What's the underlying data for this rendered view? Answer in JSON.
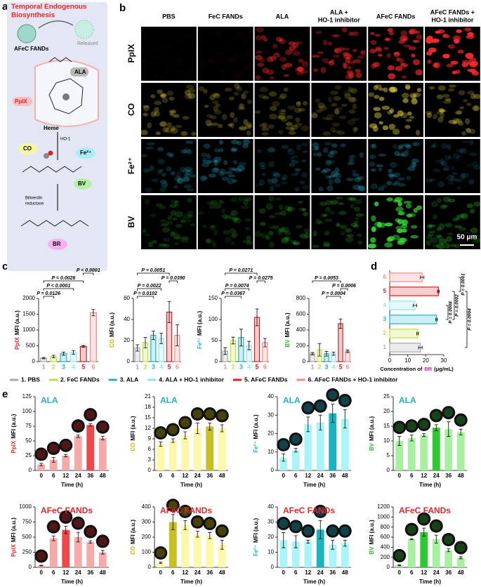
{
  "panel_labels": [
    "a",
    "b",
    "c",
    "d",
    "e"
  ],
  "panel_a": {
    "title": [
      "Temporal Endogenous",
      "Biosynthesis"
    ],
    "nanoparticle": "AFeC FANDs",
    "released": "Released",
    "ala": "ALA",
    "ppix": "PpIX",
    "heme": "Heme",
    "enzyme": "HO-1",
    "co": "CO",
    "fe": "Fe²⁺",
    "bv": "BV",
    "reductase": [
      "Biliverdin",
      "reductase"
    ],
    "br": "BR"
  },
  "panel_b": {
    "columns": [
      [
        "PBS"
      ],
      [
        "FeC FANDs"
      ],
      [
        "ALA"
      ],
      [
        "ALA +",
        "HO-1 inhibitor"
      ],
      [
        "AFeC FANDs"
      ],
      [
        "AFeC FANDs +",
        "HO-1 inhibitor"
      ]
    ],
    "rows": [
      "PpIX",
      "CO",
      "Fe²⁺",
      "BV"
    ],
    "scale_bar": "50 μm"
  },
  "legend": {
    "names": [
      "1. PBS",
      "2. FeC FANDs",
      "3. ALA",
      "4. ALA + HO-1 inhibitor",
      "5. AFeC FANDs",
      "6. AFeC FANDs + HO-1 inhibitor"
    ],
    "colors": [
      "#a8a8a8",
      "#c4dc3c",
      "#1fb2c8",
      "#8fe4f0",
      "#d81e1e",
      "#f58a8a"
    ]
  },
  "chart_data": [
    {
      "type": "bar",
      "bar_style": "outline",
      "y_label_key": "PpIX",
      "y_label_key_color": "#e8262a",
      "y_label": "MFI (a.u.)",
      "categories": [
        "1",
        "2",
        "3",
        "4",
        "5",
        "6"
      ],
      "category_colors": [
        "#a8a8a8",
        "#c4dc3c",
        "#1fb2c8",
        "#8fe4f0",
        "#d81e1e",
        "#f58a8a"
      ],
      "values": [
        110,
        160,
        250,
        290,
        480,
        1550
      ],
      "errors": [
        20,
        40,
        50,
        60,
        30,
        100
      ],
      "colors": [
        "#a8a8a8",
        "#c4dc3c",
        "#1fb2c8",
        "#8fe4f0",
        "#d81e1e",
        "#f58a8a"
      ],
      "ylim": [
        0,
        2000
      ],
      "yticks": [
        0,
        500,
        1000,
        1500,
        2000
      ],
      "brackets": [
        {
          "span": [
            0,
            1
          ],
          "label": "P = 0.0126"
        },
        {
          "span": [
            0,
            3
          ],
          "label": "P < 0.0001"
        },
        {
          "span": [
            0,
            4
          ],
          "label": "P = 0.0026"
        },
        {
          "span": [
            4,
            5
          ],
          "label": "P < 0.0001"
        }
      ]
    },
    {
      "type": "bar",
      "bar_style": "outline",
      "y_label_key": "CO",
      "y_label_key_color": "#c8b400",
      "y_label": "MFI (a.u.)",
      "categories": [
        "1",
        "2",
        "3",
        "4",
        "5",
        "6"
      ],
      "category_colors": [
        "#a8a8a8",
        "#c4dc3c",
        "#1fb2c8",
        "#8fe4f0",
        "#d81e1e",
        "#f58a8a"
      ],
      "values": [
        13,
        18,
        25,
        22,
        47,
        25
      ],
      "errors": [
        3,
        5,
        4,
        5,
        10,
        10
      ],
      "colors": [
        "#a8a8a8",
        "#c4dc3c",
        "#1fb2c8",
        "#8fe4f0",
        "#d81e1e",
        "#f58a8a"
      ],
      "ylim": [
        0,
        60
      ],
      "yticks": [
        0,
        20,
        40,
        60
      ],
      "brackets": [
        {
          "span": [
            0,
            2
          ],
          "label": "P = 0.0102"
        },
        {
          "span": [
            0,
            3
          ],
          "label": "P = 0.0022"
        },
        {
          "span": [
            4,
            5
          ],
          "label": "P = 0.0390"
        },
        {
          "span": [
            0,
            4
          ],
          "label": "P = 0.0051"
        }
      ]
    },
    {
      "type": "bar",
      "bar_style": "outline",
      "y_label_key": "Fe²⁺",
      "y_label_key_color": "#1fb2c8",
      "y_label": "MFI (a.u.)",
      "categories": [
        "1",
        "2",
        "3",
        "4",
        "5",
        "6"
      ],
      "category_colors": [
        "#a8a8a8",
        "#c4dc3c",
        "#1fb2c8",
        "#8fe4f0",
        "#d81e1e",
        "#f58a8a"
      ],
      "values": [
        25,
        50,
        57,
        38,
        105,
        45
      ],
      "errors": [
        8,
        8,
        20,
        10,
        20,
        10
      ],
      "colors": [
        "#a8a8a8",
        "#c4dc3c",
        "#1fb2c8",
        "#8fe4f0",
        "#d81e1e",
        "#f58a8a"
      ],
      "ylim": [
        0,
        150
      ],
      "yticks": [
        0,
        50,
        100,
        150
      ],
      "brackets": [
        {
          "span": [
            0,
            2
          ],
          "label": "P = 0.0367"
        },
        {
          "span": [
            0,
            3
          ],
          "label": "P = 0.0074"
        },
        {
          "span": [
            4,
            5
          ],
          "label": "P = 0.0275"
        },
        {
          "span": [
            0,
            4
          ],
          "label": "P = 0.0271"
        }
      ]
    },
    {
      "type": "bar",
      "bar_style": "outline",
      "y_label_key": "BV",
      "y_label_key_color": "#2cb82c",
      "y_label": "MFI (a.u.)",
      "categories": [
        "1",
        "2",
        "3",
        "4",
        "5",
        "6"
      ],
      "category_colors": [
        "#a8a8a8",
        "#c4dc3c",
        "#1fb2c8",
        "#8fe4f0",
        "#d81e1e",
        "#f58a8a"
      ],
      "values": [
        100,
        150,
        100,
        100,
        480,
        130
      ],
      "errors": [
        15,
        80,
        30,
        20,
        60,
        15
      ],
      "colors": [
        "#a8a8a8",
        "#c4dc3c",
        "#1fb2c8",
        "#8fe4f0",
        "#d81e1e",
        "#f58a8a"
      ],
      "ylim": [
        0,
        800
      ],
      "yticks": [
        0,
        200,
        400,
        600,
        800
      ],
      "brackets": [
        {
          "span": [
            2,
            4
          ],
          "label": "P = 0.0004"
        },
        {
          "span": [
            4,
            5
          ],
          "label": "P = 0.0006"
        },
        {
          "span": [
            0,
            4
          ],
          "label": "P = 0.0053"
        }
      ]
    },
    {
      "type": "hbar",
      "bar_style": "outline",
      "categories": [
        "1",
        "2",
        "3",
        "4",
        "5",
        "6"
      ],
      "category_colors": [
        "#a8a8a8",
        "#c4dc3c",
        "#1fb2c8",
        "#8fe4f0",
        "#d81e1e",
        "#f58a8a"
      ],
      "values": [
        17,
        15.5,
        26,
        14,
        27,
        18
      ],
      "errors": [
        1,
        0.5,
        0.5,
        1,
        0.5,
        1
      ],
      "colors": [
        "#a8a8a8",
        "#c4dc3c",
        "#1fb2c8",
        "#8fe4f0",
        "#d81e1e",
        "#f58a8a"
      ],
      "xlim": [
        0,
        30
      ],
      "xticks": [
        0,
        10,
        20,
        30
      ],
      "x_label": "Concentration of",
      "x_label_key": "BR",
      "x_label_key_color": "#e020e0",
      "x_label_unit": "(μg/mL)",
      "brackets": [
        {
          "span": [
            2,
            3
          ],
          "label": "P = 0.0008"
        },
        {
          "span": [
            2,
            4
          ],
          "label": "P = 0.0002"
        },
        {
          "span": [
            4,
            5
          ],
          "label": "P = 0.0001"
        },
        {
          "span": [
            0,
            4
          ],
          "label": "P = 0.0004"
        }
      ]
    },
    {
      "type": "bar",
      "bar_style": "solid",
      "title": "ALA",
      "title_color": "#1fb2c8",
      "y_label_key": "PpIX",
      "y_label_key_color": "#e8262a",
      "y_label": "MFI (a.u.)",
      "x_label": "Time (h)",
      "categories": [
        "0",
        "6",
        "12",
        "24",
        "36",
        "48"
      ],
      "values": [
        10,
        18,
        25,
        58,
        77,
        55
      ],
      "errors": [
        2,
        4,
        2,
        2,
        2,
        3
      ],
      "colors": [
        "#f7a8a8",
        "#f7a8a8",
        "#f7a8a8",
        "#f7a8a8",
        "#f04848",
        "#f7a8a8"
      ],
      "ylim": [
        0,
        125
      ],
      "yticks": [
        0,
        25,
        50,
        75,
        100,
        125
      ]
    },
    {
      "type": "bar",
      "bar_style": "solid",
      "title": "ALA",
      "title_color": "#1fb2c8",
      "y_label_key": "CO",
      "y_label_key_color": "#c8b400",
      "y_label": "MFI (a.u.)",
      "x_label": "Time (h)",
      "categories": [
        "0",
        "6",
        "12",
        "24",
        "36",
        "48"
      ],
      "values": [
        7.5,
        8.5,
        10,
        12,
        12.5,
        12
      ],
      "errors": [
        0.6,
        0.5,
        1,
        1.5,
        1,
        1
      ],
      "colors": [
        "#fdf8a8",
        "#fdf8a8",
        "#fdf8a8",
        "#fdf8a8",
        "#c8c020",
        "#fdf8a8"
      ],
      "ylim": [
        0,
        21
      ],
      "yticks": [
        0,
        3,
        6,
        9,
        12,
        15,
        18,
        21
      ]
    },
    {
      "type": "bar",
      "bar_style": "solid",
      "title": "ALA",
      "title_color": "#1fb2c8",
      "y_label_key": "Fe²⁺",
      "y_label_key_color": "#1fb2c8",
      "y_label": "MFI (a.u.)",
      "x_label": "Time (h)",
      "categories": [
        "0",
        "6",
        "12",
        "24",
        "36",
        "48"
      ],
      "values": [
        7,
        11,
        25,
        26,
        31,
        28
      ],
      "errors": [
        2,
        1,
        4,
        4,
        5,
        5
      ],
      "colors": [
        "#a8f4f8",
        "#a8f4f8",
        "#a8f4f8",
        "#a8f4f8",
        "#18b4c0",
        "#a8f4f8"
      ],
      "ylim": [
        0,
        40
      ],
      "yticks": [
        0,
        10,
        20,
        30,
        40
      ]
    },
    {
      "type": "bar",
      "bar_style": "solid",
      "title": "ALA",
      "title_color": "#1fb2c8",
      "y_label_key": "BV",
      "y_label_key_color": "#2cb82c",
      "y_label": "MFI (a.u.)",
      "x_label": "Time (h)",
      "categories": [
        "0",
        "6",
        "12",
        "24",
        "36",
        "48"
      ],
      "values": [
        10,
        11,
        12,
        14.5,
        14,
        13
      ],
      "errors": [
        1.5,
        1,
        0.5,
        1,
        2.5,
        1
      ],
      "colors": [
        "#a8f0a0",
        "#a8f0a0",
        "#a8f0a0",
        "#30c830",
        "#a8f0a0",
        "#a8f0a0"
      ],
      "ylim": [
        0,
        25
      ],
      "yticks": [
        0,
        5,
        10,
        15,
        20,
        25
      ]
    },
    {
      "type": "bar",
      "bar_style": "solid",
      "title": "AFeC FANDs",
      "title_color": "#e8262a",
      "y_label_key": "PpIX",
      "y_label_key_color": "#e8262a",
      "y_label": "MFI (a.u.)",
      "x_label": "Time (h)",
      "categories": [
        "0",
        "6",
        "12",
        "24",
        "36",
        "48"
      ],
      "values": [
        30,
        480,
        620,
        500,
        420,
        250
      ],
      "errors": [
        5,
        40,
        60,
        80,
        20,
        30
      ],
      "colors": [
        "#f7a8a8",
        "#f7a8a8",
        "#f04848",
        "#f7a8a8",
        "#f7a8a8",
        "#f7a8a8"
      ],
      "ylim": [
        0,
        1000
      ],
      "yticks": [
        0,
        250,
        500,
        750,
        1000
      ]
    },
    {
      "type": "bar",
      "bar_style": "solid",
      "title": "AFeC FANDs",
      "title_color": "#e8262a",
      "y_label_key": "CO",
      "y_label_key_color": "#c8b400",
      "y_label": "MFI (a.u.)",
      "x_label": "Time (h)",
      "categories": [
        "0",
        "6",
        "12",
        "24",
        "36",
        "48"
      ],
      "values": [
        30,
        300,
        280,
        220,
        210,
        150
      ],
      "errors": [
        5,
        50,
        30,
        20,
        20,
        30
      ],
      "colors": [
        "#fdf8a8",
        "#c8c020",
        "#fdf8a8",
        "#fdf8a8",
        "#fdf8a8",
        "#fdf8a8"
      ],
      "ylim": [
        0,
        400
      ],
      "yticks": [
        0,
        100,
        200,
        300,
        400
      ]
    },
    {
      "type": "bar",
      "bar_style": "solid",
      "title": "AFeC FANDs",
      "title_color": "#e8262a",
      "y_label_key": "Fe²⁺",
      "y_label_key_color": "#1fb2c8",
      "y_label": "MFI (a.u.)",
      "x_label": "Time (h)",
      "categories": [
        "0",
        "6",
        "12",
        "24",
        "36",
        "48"
      ],
      "values": [
        18,
        17,
        17,
        25,
        15,
        16
      ],
      "errors": [
        5,
        4,
        1,
        6,
        3,
        2
      ],
      "colors": [
        "#a8f4f8",
        "#a8f4f8",
        "#a8f4f8",
        "#18b4c0",
        "#a8f4f8",
        "#a8f4f8"
      ],
      "ylim": [
        0,
        40
      ],
      "yticks": [
        0,
        10,
        20,
        30,
        40
      ]
    },
    {
      "type": "bar",
      "bar_style": "solid",
      "title": "AFeC FANDs",
      "title_color": "#e8262a",
      "y_label_key": "BV",
      "y_label_key_color": "#2cb82c",
      "y_label": "MFI (a.u.)",
      "x_label": "Time (h)",
      "categories": [
        "0",
        "6",
        "12",
        "24",
        "36",
        "48"
      ],
      "values": [
        40,
        560,
        700,
        560,
        340,
        190
      ],
      "errors": [
        10,
        10,
        80,
        80,
        30,
        20
      ],
      "colors": [
        "#a8f0a0",
        "#a8f0a0",
        "#30c830",
        "#a8f0a0",
        "#a8f0a0",
        "#a8f0a0"
      ],
      "ylim": [
        0,
        1200
      ],
      "yticks": [
        0,
        200,
        400,
        600,
        800,
        1000,
        1200
      ]
    }
  ]
}
